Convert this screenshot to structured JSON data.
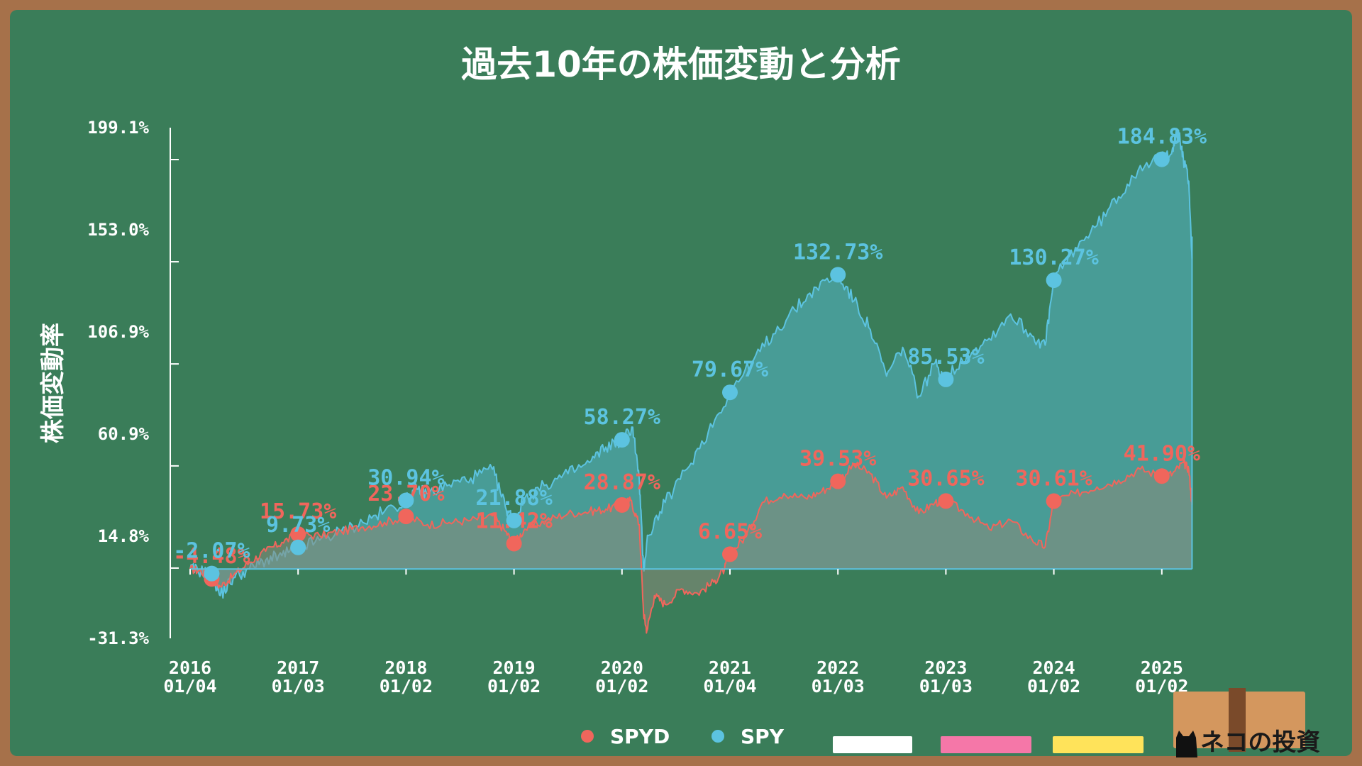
{
  "colors": {
    "board": "#3a7d59",
    "frame": "#a6714a",
    "spyd": "#f0665c",
    "spy": "#5cc3e0"
  },
  "chart_data": {
    "type": "line",
    "title": "過去10年の株価変動と分析",
    "ylabel": "株価変動率",
    "xlabel": "",
    "ylim": [
      -31.3,
      199.1
    ],
    "yticks": [
      "199.1%",
      "153.0%",
      "106.9%",
      "60.9%",
      "14.8%",
      "-31.3%"
    ],
    "ytick_values": [
      199.1,
      153.0,
      106.9,
      60.9,
      14.8,
      -31.3
    ],
    "xticks": [
      {
        "year": "2016",
        "date": "01/04",
        "t": 0
      },
      {
        "year": "2017",
        "date": "01/03",
        "t": 1
      },
      {
        "year": "2018",
        "date": "01/02",
        "t": 2
      },
      {
        "year": "2019",
        "date": "01/02",
        "t": 3
      },
      {
        "year": "2020",
        "date": "01/02",
        "t": 4
      },
      {
        "year": "2021",
        "date": "01/04",
        "t": 5
      },
      {
        "year": "2022",
        "date": "01/03",
        "t": 6
      },
      {
        "year": "2023",
        "date": "01/03",
        "t": 7
      },
      {
        "year": "2024",
        "date": "01/02",
        "t": 8
      },
      {
        "year": "2025",
        "date": "01/02",
        "t": 9
      }
    ],
    "x_end": 9.28,
    "legend_placement": "bottom",
    "series": [
      {
        "name": "SPYD",
        "color": "#f0665c",
        "annotated_points": [
          {
            "t": 0.2,
            "value": -4.48,
            "label": "-4.48%"
          },
          {
            "t": 1,
            "value": 15.73,
            "label": "15.73%"
          },
          {
            "t": 2,
            "value": 23.7,
            "label": "23.70%"
          },
          {
            "t": 3,
            "value": 11.42,
            "label": "11.42%"
          },
          {
            "t": 4,
            "value": 28.87,
            "label": "28.87%"
          },
          {
            "t": 5,
            "value": 6.65,
            "label": "6.65%"
          },
          {
            "t": 6,
            "value": 39.53,
            "label": "39.53%"
          },
          {
            "t": 7,
            "value": 30.65,
            "label": "30.65%"
          },
          {
            "t": 8,
            "value": 30.61,
            "label": "30.61%"
          },
          {
            "t": 9,
            "value": 41.9,
            "label": "41.90%"
          }
        ],
        "path": [
          [
            0,
            0
          ],
          [
            0.1,
            -1
          ],
          [
            0.2,
            -4.5
          ],
          [
            0.28,
            -8
          ],
          [
            0.4,
            -3
          ],
          [
            0.55,
            3
          ],
          [
            0.7,
            8
          ],
          [
            0.85,
            12
          ],
          [
            1,
            15.7
          ],
          [
            1.2,
            15
          ],
          [
            1.4,
            17
          ],
          [
            1.6,
            19
          ],
          [
            1.8,
            21
          ],
          [
            2,
            23.7
          ],
          [
            2.2,
            20
          ],
          [
            2.4,
            21
          ],
          [
            2.6,
            22
          ],
          [
            2.8,
            24
          ],
          [
            2.92,
            17
          ],
          [
            3,
            11.4
          ],
          [
            3.1,
            18
          ],
          [
            3.3,
            22
          ],
          [
            3.5,
            25
          ],
          [
            3.7,
            26
          ],
          [
            3.85,
            27
          ],
          [
            4,
            28.9
          ],
          [
            4.08,
            31
          ],
          [
            4.16,
            20
          ],
          [
            4.2,
            -20
          ],
          [
            4.23,
            -28
          ],
          [
            4.3,
            -12
          ],
          [
            4.4,
            -16
          ],
          [
            4.55,
            -9
          ],
          [
            4.7,
            -11
          ],
          [
            4.85,
            -6
          ],
          [
            4.95,
            0
          ],
          [
            5,
            6.7
          ],
          [
            5.15,
            15
          ],
          [
            5.3,
            30
          ],
          [
            5.5,
            34
          ],
          [
            5.7,
            32
          ],
          [
            5.85,
            35
          ],
          [
            6,
            39.5
          ],
          [
            6.15,
            47
          ],
          [
            6.3,
            43
          ],
          [
            6.45,
            32
          ],
          [
            6.6,
            37
          ],
          [
            6.75,
            25
          ],
          [
            6.9,
            30
          ],
          [
            7,
            30.7
          ],
          [
            7.2,
            25
          ],
          [
            7.4,
            18
          ],
          [
            7.6,
            22
          ],
          [
            7.8,
            13
          ],
          [
            7.92,
            10
          ],
          [
            8,
            30.6
          ],
          [
            8.2,
            34
          ],
          [
            8.4,
            37
          ],
          [
            8.6,
            40
          ],
          [
            8.8,
            45
          ],
          [
            9,
            41.9
          ],
          [
            9.1,
            43
          ],
          [
            9.2,
            48
          ],
          [
            9.25,
            45
          ],
          [
            9.28,
            29
          ]
        ]
      },
      {
        "name": "SPY",
        "color": "#5cc3e0",
        "annotated_points": [
          {
            "t": 0.2,
            "value": -2.07,
            "label": "-2.07%"
          },
          {
            "t": 1,
            "value": 9.73,
            "label": "9.73%"
          },
          {
            "t": 2,
            "value": 30.94,
            "label": "30.94%"
          },
          {
            "t": 3,
            "value": 21.88,
            "label": "21.88%"
          },
          {
            "t": 4,
            "value": 58.27,
            "label": "58.27%"
          },
          {
            "t": 5,
            "value": 79.67,
            "label": "79.67%"
          },
          {
            "t": 6,
            "value": 132.73,
            "label": "132.73%"
          },
          {
            "t": 7,
            "value": 85.53,
            "label": "85.53%"
          },
          {
            "t": 8,
            "value": 130.27,
            "label": "130.27%"
          },
          {
            "t": 9,
            "value": 184.83,
            "label": "184.83%"
          }
        ],
        "path": [
          [
            0,
            0
          ],
          [
            0.1,
            -1
          ],
          [
            0.2,
            -2.1
          ],
          [
            0.28,
            -12
          ],
          [
            0.4,
            -4
          ],
          [
            0.55,
            0
          ],
          [
            0.7,
            4
          ],
          [
            0.85,
            6
          ],
          [
            1,
            9.7
          ],
          [
            1.2,
            13
          ],
          [
            1.4,
            17
          ],
          [
            1.6,
            21
          ],
          [
            1.8,
            26
          ],
          [
            2,
            30.9
          ],
          [
            2.1,
            36
          ],
          [
            2.2,
            34
          ],
          [
            2.4,
            38
          ],
          [
            2.6,
            41
          ],
          [
            2.8,
            45
          ],
          [
            2.92,
            28
          ],
          [
            3,
            21.9
          ],
          [
            3.1,
            32
          ],
          [
            3.3,
            38
          ],
          [
            3.5,
            43
          ],
          [
            3.7,
            48
          ],
          [
            3.85,
            55
          ],
          [
            4,
            58.3
          ],
          [
            4.1,
            64
          ],
          [
            4.16,
            40
          ],
          [
            4.2,
            0
          ],
          [
            4.24,
            15
          ],
          [
            4.4,
            30
          ],
          [
            4.6,
            45
          ],
          [
            4.8,
            62
          ],
          [
            5,
            79.7
          ],
          [
            5.2,
            93
          ],
          [
            5.4,
            106
          ],
          [
            5.6,
            117
          ],
          [
            5.8,
            127
          ],
          [
            6,
            132.7
          ],
          [
            6.15,
            121
          ],
          [
            6.3,
            108
          ],
          [
            6.45,
            87
          ],
          [
            6.6,
            100
          ],
          [
            6.75,
            78
          ],
          [
            6.9,
            93
          ],
          [
            7,
            85.5
          ],
          [
            7.2,
            97
          ],
          [
            7.4,
            104
          ],
          [
            7.6,
            115
          ],
          [
            7.8,
            105
          ],
          [
            7.92,
            101
          ],
          [
            8,
            130.3
          ],
          [
            8.2,
            145
          ],
          [
            8.4,
            155
          ],
          [
            8.6,
            168
          ],
          [
            8.8,
            182
          ],
          [
            9,
            184.8
          ],
          [
            9.1,
            190
          ],
          [
            9.15,
            198
          ],
          [
            9.2,
            185
          ],
          [
            9.25,
            175
          ],
          [
            9.28,
            140
          ]
        ]
      }
    ]
  },
  "legend": {
    "items": [
      {
        "label": "SPYD",
        "color": "#f0665c"
      },
      {
        "label": "SPY",
        "color": "#5cc3e0"
      }
    ],
    "chalk_colors": [
      "#ffffff",
      "#f577a8",
      "#ffe35a"
    ]
  },
  "logo": {
    "text": "ネコの投資"
  }
}
